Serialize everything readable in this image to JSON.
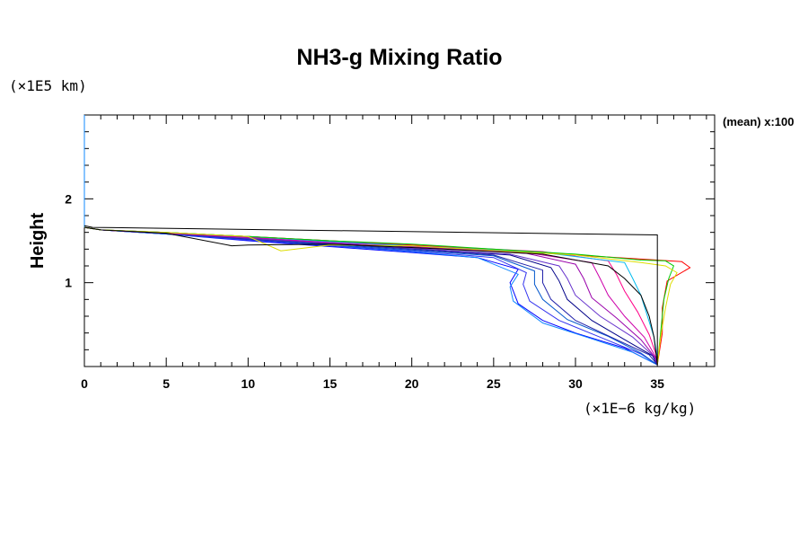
{
  "chart_data": {
    "type": "line",
    "title": "NH3-g Mixing Ratio",
    "ylabel": "Height",
    "xunit": "(×1E−6 kg/kg)",
    "yunit": "(×1E5 km)",
    "annotation": "(mean) x:100",
    "xlim": [
      0,
      38.5
    ],
    "ylim": [
      0,
      3
    ],
    "xticks": [
      0,
      5,
      10,
      15,
      20,
      25,
      30,
      35
    ],
    "yticks": [
      1,
      2
    ],
    "grid": false,
    "legend": "none",
    "colors": [
      "#0000ff",
      "#3333ee",
      "#0055cc",
      "#1188ff",
      "#2222aa",
      "#000088",
      "#6633cc",
      "#9900aa",
      "#cc00aa",
      "#ff0088",
      "#ff0000",
      "#00bbee",
      "#00cc00",
      "#dddd00",
      "#000000"
    ],
    "reference_series": {
      "name": "",
      "color": "#000000",
      "points": [
        [
          0,
          1.68
        ],
        [
          0.5,
          1.66
        ],
        [
          35,
          1.57
        ],
        [
          35,
          0.02
        ]
      ]
    },
    "series": [
      {
        "color": "#0000ff",
        "points": [
          [
            0,
            1.66
          ],
          [
            1,
            1.63
          ],
          [
            5,
            1.58
          ],
          [
            10,
            1.5
          ],
          [
            15,
            1.43
          ],
          [
            20,
            1.36
          ],
          [
            24,
            1.3
          ],
          [
            26.5,
            1.16
          ],
          [
            26,
            1.0
          ],
          [
            26.5,
            0.75
          ],
          [
            28,
            0.55
          ],
          [
            30,
            0.4
          ],
          [
            33,
            0.22
          ],
          [
            35,
            0.02
          ]
        ]
      },
      {
        "color": "#1188ff",
        "points": [
          [
            0,
            1.66
          ],
          [
            1,
            1.63
          ],
          [
            5,
            1.58
          ],
          [
            10,
            1.51
          ],
          [
            15,
            1.44
          ],
          [
            20,
            1.37
          ],
          [
            24,
            1.3
          ],
          [
            26.5,
            1.1
          ],
          [
            26,
            0.95
          ],
          [
            26.2,
            0.78
          ],
          [
            28,
            0.52
          ],
          [
            31,
            0.33
          ],
          [
            33.5,
            0.17
          ],
          [
            35,
            0.02
          ]
        ]
      },
      {
        "color": "#3333ee",
        "points": [
          [
            0,
            1.66
          ],
          [
            1,
            1.63
          ],
          [
            5,
            1.58
          ],
          [
            10,
            1.51
          ],
          [
            15,
            1.44
          ],
          [
            20,
            1.38
          ],
          [
            25,
            1.3
          ],
          [
            27,
            1.12
          ],
          [
            26.8,
            0.98
          ],
          [
            27.2,
            0.78
          ],
          [
            29,
            0.55
          ],
          [
            31.5,
            0.35
          ],
          [
            34,
            0.15
          ],
          [
            35,
            0.02
          ]
        ]
      },
      {
        "color": "#0055cc",
        "points": [
          [
            0,
            1.66
          ],
          [
            1,
            1.63
          ],
          [
            5,
            1.58
          ],
          [
            10,
            1.52
          ],
          [
            15,
            1.45
          ],
          [
            20,
            1.39
          ],
          [
            25,
            1.32
          ],
          [
            27.5,
            1.14
          ],
          [
            27.5,
            0.98
          ],
          [
            28,
            0.8
          ],
          [
            29.5,
            0.56
          ],
          [
            32,
            0.36
          ],
          [
            34,
            0.16
          ],
          [
            35,
            0.02
          ]
        ]
      },
      {
        "color": "#2222aa",
        "points": [
          [
            0,
            1.66
          ],
          [
            1,
            1.63
          ],
          [
            5,
            1.59
          ],
          [
            10,
            1.52
          ],
          [
            15,
            1.46
          ],
          [
            20,
            1.4
          ],
          [
            25,
            1.33
          ],
          [
            28,
            1.15
          ],
          [
            28,
            1.0
          ],
          [
            28.5,
            0.8
          ],
          [
            30,
            0.55
          ],
          [
            32.5,
            0.32
          ],
          [
            34.5,
            0.14
          ],
          [
            35,
            0.02
          ]
        ]
      },
      {
        "color": "#000088",
        "points": [
          [
            0,
            1.66
          ],
          [
            1,
            1.63
          ],
          [
            5,
            1.59
          ],
          [
            10,
            1.53
          ],
          [
            15,
            1.47
          ],
          [
            20,
            1.41
          ],
          [
            26,
            1.33
          ],
          [
            28.5,
            1.18
          ],
          [
            29,
            1.02
          ],
          [
            29.5,
            0.8
          ],
          [
            31,
            0.55
          ],
          [
            33,
            0.32
          ],
          [
            34.7,
            0.13
          ],
          [
            35,
            0.02
          ]
        ]
      },
      {
        "color": "#6633cc",
        "points": [
          [
            0,
            1.66
          ],
          [
            1,
            1.63
          ],
          [
            5,
            1.59
          ],
          [
            10,
            1.53
          ],
          [
            15,
            1.47
          ],
          [
            20,
            1.41
          ],
          [
            26,
            1.34
          ],
          [
            29,
            1.2
          ],
          [
            29.5,
            1.05
          ],
          [
            30,
            0.85
          ],
          [
            31.5,
            0.6
          ],
          [
            33.5,
            0.35
          ],
          [
            34.8,
            0.12
          ],
          [
            35,
            0.02
          ]
        ]
      },
      {
        "color": "#9900aa",
        "points": [
          [
            0,
            1.66
          ],
          [
            1,
            1.63
          ],
          [
            5,
            1.59
          ],
          [
            10,
            1.54
          ],
          [
            15,
            1.48
          ],
          [
            20,
            1.43
          ],
          [
            27,
            1.35
          ],
          [
            30,
            1.22
          ],
          [
            30.5,
            1.05
          ],
          [
            31,
            0.82
          ],
          [
            32.5,
            0.58
          ],
          [
            34,
            0.32
          ],
          [
            34.9,
            0.1
          ],
          [
            35,
            0.02
          ]
        ]
      },
      {
        "color": "#cc00aa",
        "points": [
          [
            0,
            1.66
          ],
          [
            1,
            1.63
          ],
          [
            5,
            1.59
          ],
          [
            10,
            1.54
          ],
          [
            15,
            1.48
          ],
          [
            20,
            1.43
          ],
          [
            27,
            1.36
          ],
          [
            31,
            1.24
          ],
          [
            31.5,
            1.05
          ],
          [
            32,
            0.85
          ],
          [
            33,
            0.6
          ],
          [
            34.2,
            0.35
          ],
          [
            35,
            0.08
          ],
          [
            35,
            0.02
          ]
        ]
      },
      {
        "color": "#ff0088",
        "points": [
          [
            0,
            1.66
          ],
          [
            1,
            1.63
          ],
          [
            5,
            1.6
          ],
          [
            10,
            1.55
          ],
          [
            15,
            1.5
          ],
          [
            20,
            1.45
          ],
          [
            28,
            1.37
          ],
          [
            32,
            1.26
          ],
          [
            32.5,
            1.1
          ],
          [
            33,
            0.9
          ],
          [
            33.8,
            0.65
          ],
          [
            34.5,
            0.38
          ],
          [
            35,
            0.1
          ],
          [
            35,
            0.02
          ]
        ]
      },
      {
        "color": "#ff0000",
        "points": [
          [
            0,
            1.66
          ],
          [
            1,
            1.63
          ],
          [
            5,
            1.6
          ],
          [
            10,
            1.55
          ],
          [
            15,
            1.5
          ],
          [
            20,
            1.45
          ],
          [
            30,
            1.33
          ],
          [
            35,
            1.27
          ],
          [
            36.5,
            1.25
          ],
          [
            37,
            1.18
          ],
          [
            35.6,
            1.02
          ],
          [
            35.3,
            0.7
          ],
          [
            35.3,
            0.4
          ],
          [
            35,
            0.02
          ]
        ]
      },
      {
        "color": "#00bbee",
        "points": [
          [
            0,
            1.66
          ],
          [
            1,
            1.63
          ],
          [
            5,
            1.6
          ],
          [
            10,
            1.55
          ],
          [
            15,
            1.49
          ],
          [
            20,
            1.44
          ],
          [
            28,
            1.36
          ],
          [
            33,
            1.24
          ],
          [
            33.5,
            1.05
          ],
          [
            34,
            0.85
          ],
          [
            34.4,
            0.6
          ],
          [
            34.8,
            0.35
          ],
          [
            35,
            0.1
          ],
          [
            35,
            0.02
          ]
        ]
      },
      {
        "color": "#00cc00",
        "points": [
          [
            0,
            1.66
          ],
          [
            1,
            1.63
          ],
          [
            5,
            1.6
          ],
          [
            10,
            1.55
          ],
          [
            15,
            1.5
          ],
          [
            20,
            1.46
          ],
          [
            30,
            1.34
          ],
          [
            34,
            1.27
          ],
          [
            35.5,
            1.26
          ],
          [
            36,
            1.2
          ],
          [
            35.7,
            1.05
          ],
          [
            35.4,
            0.8
          ],
          [
            35.2,
            0.4
          ],
          [
            35,
            0.02
          ]
        ]
      },
      {
        "color": "#dddd00",
        "points": [
          [
            0,
            1.66
          ],
          [
            1,
            1.63
          ],
          [
            5,
            1.6
          ],
          [
            10,
            1.55
          ],
          [
            12,
            1.38
          ],
          [
            15,
            1.45
          ],
          [
            20,
            1.44
          ],
          [
            30,
            1.33
          ],
          [
            34,
            1.24
          ],
          [
            35.5,
            1.2
          ],
          [
            36.2,
            1.12
          ],
          [
            35.8,
            0.98
          ],
          [
            35.5,
            0.7
          ],
          [
            35.2,
            0.35
          ],
          [
            35,
            0.02
          ]
        ]
      },
      {
        "color": "#000000",
        "points": [
          [
            0,
            1.66
          ],
          [
            1,
            1.63
          ],
          [
            5,
            1.59
          ],
          [
            9,
            1.44
          ],
          [
            10,
            1.45
          ],
          [
            15,
            1.46
          ],
          [
            20,
            1.42
          ],
          [
            28,
            1.34
          ],
          [
            32,
            1.2
          ],
          [
            33,
            1.05
          ],
          [
            34,
            0.85
          ],
          [
            34.5,
            0.6
          ],
          [
            34.8,
            0.35
          ],
          [
            35,
            0.02
          ]
        ]
      }
    ]
  }
}
